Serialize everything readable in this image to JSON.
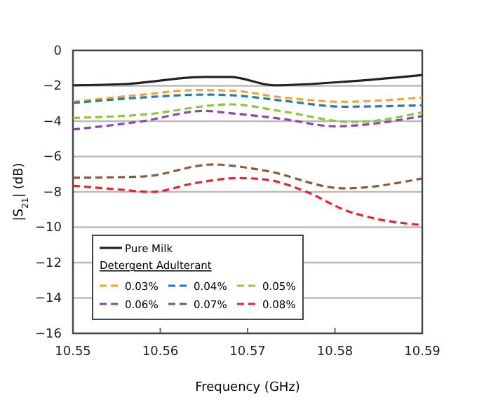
{
  "chart_data": {
    "type": "line",
    "xlabel": "Frequency (GHz)",
    "ylabel": "|S$_{21}$| (dB)",
    "legend_title": "Detergent Adulterant",
    "xlim": [
      10.55,
      10.59
    ],
    "xticks": [
      10.55,
      10.56,
      10.57,
      10.58,
      10.59
    ],
    "ylim": [
      -16,
      0
    ],
    "yticks": [
      -16,
      -14,
      -12,
      -10,
      -8,
      -6,
      -4,
      -2,
      0
    ],
    "grid": "y",
    "legend": "bottom left",
    "series": [
      {
        "name": "Pure Milk",
        "color": "#222222",
        "line_style": "solid",
        "x": [
          10.55,
          10.556,
          10.565,
          10.568,
          10.573,
          10.582,
          10.59
        ],
        "values": [
          -1.97,
          -1.9,
          -1.5,
          -1.5,
          -1.97,
          -1.74,
          -1.39
        ]
      },
      {
        "name": "0.03%",
        "color": "#f5a623",
        "line_style": "dashed",
        "x": [
          10.55,
          10.558,
          10.564,
          10.568,
          10.574,
          10.581,
          10.59
        ],
        "values": [
          -2.9,
          -2.5,
          -2.24,
          -2.27,
          -2.66,
          -2.9,
          -2.66
        ]
      },
      {
        "name": "0.04%",
        "color": "#1f78c8",
        "line_style": "dashed",
        "x": [
          10.55,
          10.558,
          10.565,
          10.568,
          10.574,
          10.581,
          10.59
        ],
        "values": [
          -2.97,
          -2.66,
          -2.5,
          -2.53,
          -2.84,
          -3.18,
          -3.1
        ]
      },
      {
        "name": "0.05%",
        "color": "#8cc63f",
        "line_style": "dashed",
        "x": [
          10.55,
          10.558,
          10.568,
          10.574,
          10.582,
          10.59
        ],
        "values": [
          -3.82,
          -3.63,
          -3.05,
          -3.45,
          -4.05,
          -3.5
        ]
      },
      {
        "name": "0.06%",
        "color": "#8e44ad",
        "line_style": "dashed",
        "x": [
          10.55,
          10.558,
          10.565,
          10.568,
          10.574,
          10.58,
          10.59
        ],
        "values": [
          -4.47,
          -4.0,
          -3.42,
          -3.55,
          -3.87,
          -4.29,
          -3.71
        ]
      },
      {
        "name": "0.07%",
        "color": "#8b5a3c",
        "line_style": "dashed",
        "x": [
          10.55,
          10.558,
          10.566,
          10.572,
          10.581,
          10.59
        ],
        "values": [
          -7.2,
          -7.13,
          -6.45,
          -6.8,
          -7.8,
          -7.24
        ]
      },
      {
        "name": "0.08%",
        "color": "#e8232a",
        "line_style": "dashed",
        "x": [
          10.55,
          10.555,
          10.559,
          10.564,
          10.569,
          10.572,
          10.577,
          10.581,
          10.585,
          10.59
        ],
        "values": [
          -7.65,
          -7.85,
          -8.0,
          -7.5,
          -7.22,
          -7.3,
          -8.05,
          -9.0,
          -9.55,
          -9.87
        ]
      }
    ]
  }
}
